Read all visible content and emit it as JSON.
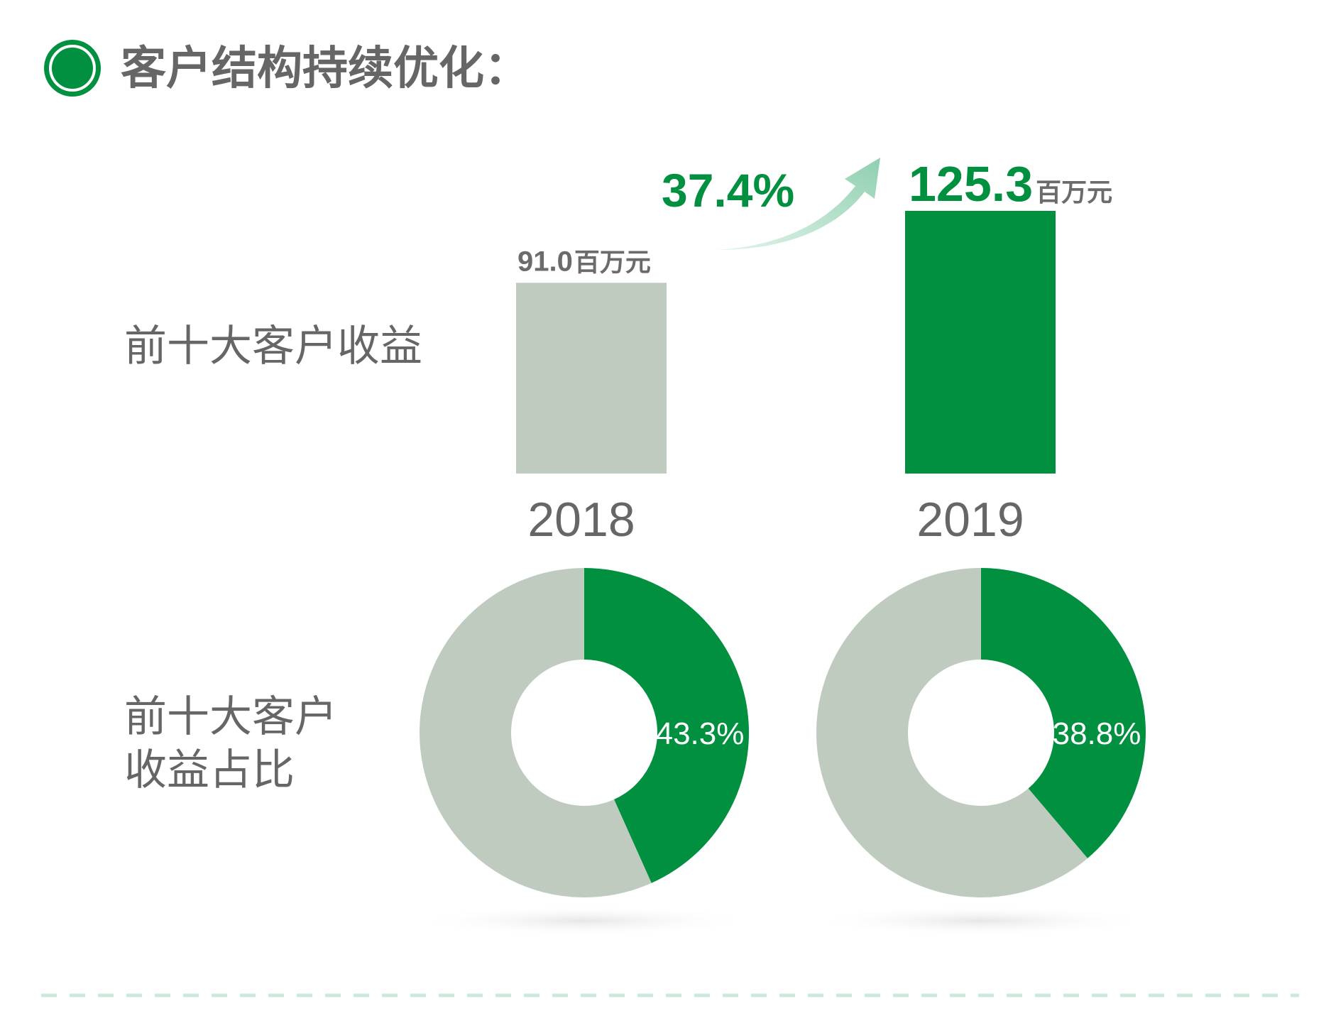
{
  "header": {
    "title": "客户结构持续优化："
  },
  "labels": {
    "revenue_row": "前十大客户收益",
    "share_row_line1": "前十大客户",
    "share_row_line2": "收益占比"
  },
  "colors": {
    "accent": "#00903f",
    "muted": "#c0cbc0",
    "text": "#666666",
    "arrow": "#9ed6bd",
    "dash": "#cfe8dc"
  },
  "chart_data": [
    {
      "type": "bar",
      "categories": [
        "2018",
        "2019"
      ],
      "values": [
        91.0,
        125.3
      ],
      "value_labels": [
        "91.0",
        "125.3"
      ],
      "unit": "百万元",
      "growth_label": "37.4%",
      "ylim": [
        0,
        140
      ]
    },
    {
      "type": "pie",
      "donut": true,
      "categories": [
        "2018",
        "2019"
      ],
      "share_values": [
        43.3,
        38.8
      ],
      "share_labels": [
        "43.3%",
        "38.8%"
      ]
    }
  ]
}
